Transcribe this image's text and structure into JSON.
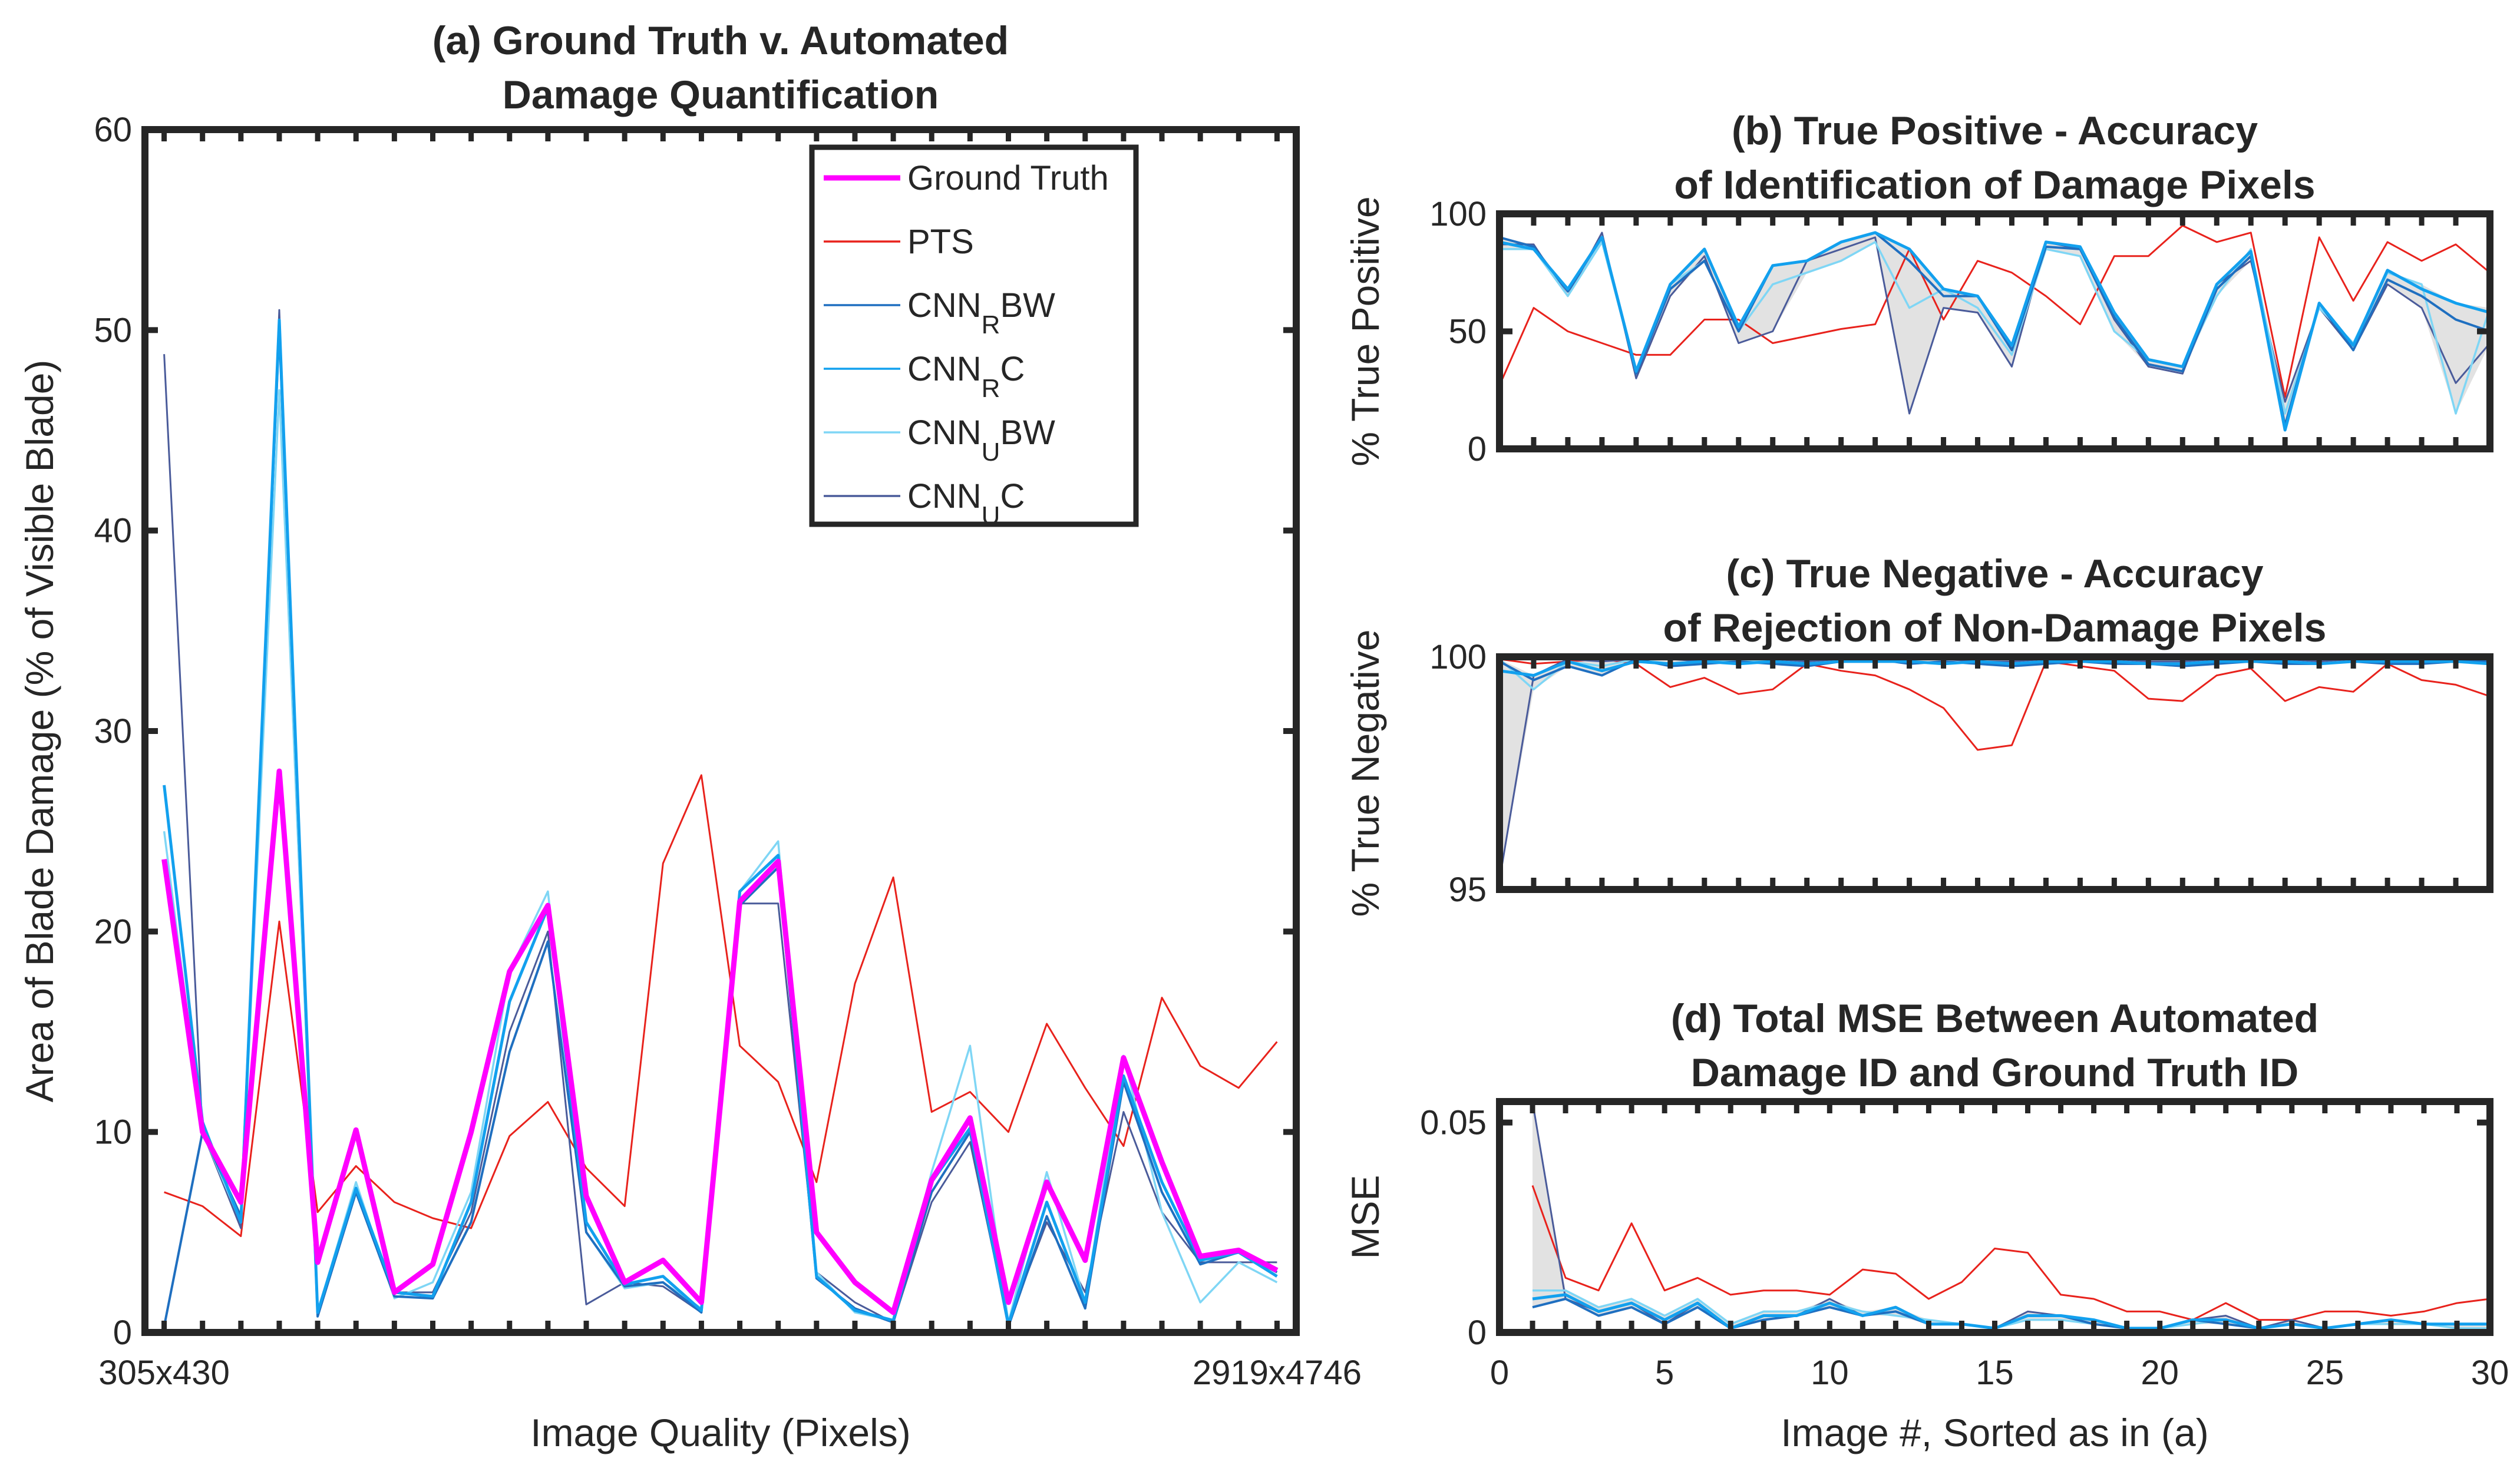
{
  "colors": {
    "ground_truth": "#ff00ff",
    "pts": "#e8221c",
    "cnn_r_bw": "#1f6fc0",
    "cnn_r_c": "#12a0ee",
    "cnn_u_bw": "#7fd6f5",
    "cnn_u_c": "#4a5b9a",
    "shade": "#d8d8d8",
    "axis": "#262626"
  },
  "chart_data": [
    {
      "id": "a",
      "type": "line",
      "title_lines": [
        "(a) Ground Truth v. Automated",
        "Damage Quantification"
      ],
      "xlabel": "Image Quality (Pixels)",
      "ylabel": "Area of Blade Damage (% of Visible Blade)",
      "xlim": [
        0.5,
        30.5
      ],
      "ylim": [
        0,
        60
      ],
      "yticks": [
        0,
        10,
        20,
        30,
        40,
        50,
        60
      ],
      "xticks": [
        1,
        30
      ],
      "xticklabels": [
        "305x430",
        "2919x4746"
      ],
      "legend": {
        "position": "top-right",
        "entries": [
          {
            "key": "gt",
            "base": "Ground Truth",
            "sub": "",
            "tail": ""
          },
          {
            "key": "pts",
            "base": "PTS",
            "sub": "",
            "tail": ""
          },
          {
            "key": "rbw",
            "base": "CNN",
            "sub": "R",
            "tail": "BW"
          },
          {
            "key": "rc",
            "base": "CNN",
            "sub": "R",
            "tail": "C"
          },
          {
            "key": "ubw",
            "base": "CNN",
            "sub": "U",
            "tail": "BW"
          },
          {
            "key": "uc",
            "base": "CNN",
            "sub": "U",
            "tail": "C"
          }
        ]
      },
      "series": [
        {
          "key": "pts",
          "name": "PTS",
          "values": [
            7,
            6.3,
            4.8,
            20.5,
            6,
            8.3,
            6.5,
            5.7,
            5.2,
            9.8,
            11.5,
            8.2,
            6.3,
            23.4,
            27.8,
            14.3,
            12.5,
            7.5,
            17.4,
            22.7,
            11,
            12,
            10,
            15.4,
            12.2,
            9.3,
            16.7,
            13.3,
            12.2,
            14.5
          ]
        },
        {
          "key": "uc",
          "name": "CNN_U C",
          "values": [
            48.8,
            10,
            5.2,
            51,
            1,
            7,
            2,
            2,
            6,
            15,
            20,
            1.4,
            2.5,
            2.3,
            1,
            21.4,
            21.4,
            3,
            1.5,
            0.5,
            6.5,
            9.5,
            0.5,
            5.5,
            2,
            11,
            6,
            3.5,
            3.5,
            3.5
          ]
        },
        {
          "key": "ubw",
          "name": "CNN_U BW",
          "values": [
            25,
            10,
            5.5,
            47,
            1,
            7.5,
            1.7,
            2.5,
            7,
            18,
            22,
            5,
            2.2,
            2.5,
            1.2,
            22,
            24.5,
            3,
            1,
            0.6,
            8,
            14.3,
            0.5,
            8,
            1.5,
            13.8,
            6,
            1.5,
            3.5,
            2.5
          ]
        },
        {
          "key": "rbw",
          "name": "CNN_R BW",
          "values": [
            0.3,
            10,
            5.8,
            50,
            0.8,
            7,
            1.8,
            1.7,
            5.5,
            14,
            19.5,
            5,
            2.3,
            2.5,
            1,
            21.3,
            23.2,
            2.7,
            1.2,
            0.5,
            7,
            10,
            0.3,
            5.8,
            1.2,
            12.5,
            7,
            3.4,
            4,
            3
          ]
        },
        {
          "key": "rc",
          "name": "CNN_R C",
          "values": [
            27.3,
            10.5,
            5.5,
            50.5,
            1,
            7.2,
            2,
            1.8,
            6.5,
            16.5,
            21.2,
            5.5,
            2.4,
            2.8,
            1.1,
            22,
            23.8,
            2.8,
            1.1,
            0.6,
            7.5,
            10.2,
            0.4,
            6.5,
            1.5,
            12.8,
            7.5,
            3.6,
            4,
            2.8
          ]
        },
        {
          "key": "gt",
          "name": "Ground Truth",
          "values": [
            23.6,
            10,
            6.5,
            28,
            3.5,
            10.1,
            2,
            3.4,
            10,
            18,
            21.3,
            6.8,
            2.5,
            3.6,
            1.5,
            21.5,
            23.5,
            5,
            2.5,
            1,
            7.6,
            10.7,
            1.5,
            7.5,
            3.6,
            13.7,
            8.5,
            3.8,
            4.1,
            3.1
          ]
        }
      ]
    },
    {
      "id": "b",
      "type": "line",
      "title_lines": [
        "(b) True Positive - Accuracy",
        "of Identification of Damage Pixels"
      ],
      "xlabel": "",
      "ylabel": "% True Positive",
      "xlim": [
        1,
        30
      ],
      "ylim": [
        0,
        100
      ],
      "yticks": [
        0,
        50,
        100
      ],
      "xticks": [
        1,
        5,
        10,
        15,
        20,
        25,
        30
      ],
      "series": [
        {
          "key": "pts",
          "name": "PTS",
          "values": [
            27,
            60,
            50,
            45,
            40,
            40,
            55,
            55,
            45,
            48,
            51,
            53,
            85,
            55,
            80,
            75,
            65,
            53,
            82,
            82,
            95,
            88,
            92,
            22,
            90,
            63,
            88,
            80,
            87,
            75
          ]
        },
        {
          "key": "uc",
          "name": "CNN_U C",
          "values": [
            87,
            87,
            65,
            92,
            30,
            65,
            82,
            45,
            50,
            80,
            85,
            90,
            15,
            60,
            58,
            35,
            88,
            85,
            55,
            35,
            32,
            70,
            80,
            20,
            60,
            42,
            70,
            60,
            28,
            45
          ]
        },
        {
          "key": "ubw",
          "name": "CNN_U BW",
          "values": [
            85,
            85,
            65,
            88,
            33,
            70,
            80,
            50,
            70,
            75,
            80,
            88,
            60,
            68,
            60,
            40,
            85,
            82,
            50,
            38,
            35,
            65,
            85,
            15,
            60,
            45,
            75,
            70,
            15,
            60
          ]
        },
        {
          "key": "rbw",
          "name": "CNN_R BW",
          "values": [
            90,
            86,
            67,
            90,
            32,
            68,
            80,
            50,
            78,
            80,
            88,
            92,
            80,
            65,
            65,
            42,
            86,
            85,
            56,
            36,
            33,
            68,
            82,
            10,
            62,
            42,
            72,
            65,
            55,
            50
          ]
        },
        {
          "key": "rc",
          "name": "CNN_R C",
          "values": [
            88,
            85,
            68,
            90,
            33,
            70,
            85,
            52,
            78,
            80,
            88,
            92,
            85,
            68,
            65,
            44,
            88,
            86,
            58,
            38,
            35,
            70,
            84,
            8,
            62,
            44,
            76,
            68,
            62,
            58
          ]
        }
      ]
    },
    {
      "id": "c",
      "type": "line",
      "title_lines": [
        "(c) True Negative - Accuracy",
        "of Rejection of Non-Damage Pixels"
      ],
      "xlabel": "",
      "ylabel": "% True Negative",
      "xlim": [
        1,
        30
      ],
      "ylim": [
        95,
        100
      ],
      "yticks": [
        95,
        100
      ],
      "xticks": [
        1,
        5,
        10,
        15,
        20,
        25,
        30
      ],
      "series": [
        {
          "key": "pts",
          "name": "PTS",
          "values": [
            99.95,
            99.85,
            99.9,
            99.95,
            99.85,
            99.35,
            99.55,
            99.2,
            99.3,
            99.85,
            99.7,
            99.6,
            99.3,
            98.9,
            98.0,
            98.1,
            99.9,
            99.8,
            99.7,
            99.1,
            99.05,
            99.6,
            99.75,
            99.05,
            99.35,
            99.25,
            99.85,
            99.5,
            99.4,
            99.15
          ]
        },
        {
          "key": "uc",
          "name": "CNN_U C",
          "values": [
            95.2,
            99.6,
            99.95,
            99.9,
            99.95,
            99.95,
            99.9,
            99.95,
            99.95,
            99.9,
            99.95,
            99.95,
            99.95,
            99.95,
            99.9,
            99.9,
            99.95,
            99.95,
            99.95,
            99.9,
            99.9,
            99.95,
            99.95,
            99.95,
            99.9,
            99.95,
            99.95,
            99.95,
            99.95,
            99.95
          ]
        },
        {
          "key": "ubw",
          "name": "CNN_U BW",
          "values": [
            99.95,
            99.3,
            99.9,
            99.8,
            99.95,
            99.85,
            99.9,
            99.9,
            99.9,
            99.85,
            99.9,
            99.95,
            99.85,
            99.9,
            99.85,
            99.8,
            99.9,
            99.9,
            99.9,
            99.85,
            99.8,
            99.85,
            99.95,
            99.9,
            99.85,
            99.9,
            99.9,
            99.85,
            99.9,
            99.9
          ]
        },
        {
          "key": "rbw",
          "name": "CNN_R BW",
          "values": [
            99.9,
            99.5,
            99.8,
            99.6,
            99.95,
            99.8,
            99.85,
            99.9,
            99.85,
            99.8,
            99.9,
            99.95,
            99.85,
            99.9,
            99.85,
            99.8,
            99.85,
            99.9,
            99.85,
            99.85,
            99.8,
            99.85,
            99.9,
            99.85,
            99.85,
            99.9,
            99.85,
            99.85,
            99.9,
            99.9
          ]
        },
        {
          "key": "rc",
          "name": "CNN_R C",
          "values": [
            99.7,
            99.6,
            99.9,
            99.7,
            99.9,
            99.85,
            99.9,
            99.85,
            99.9,
            99.85,
            99.9,
            99.9,
            99.9,
            99.85,
            99.9,
            99.85,
            99.9,
            99.9,
            99.9,
            99.85,
            99.85,
            99.9,
            99.9,
            99.9,
            99.85,
            99.9,
            99.9,
            99.9,
            99.9,
            99.85
          ]
        }
      ]
    },
    {
      "id": "d",
      "type": "line",
      "title_lines": [
        "(d) Total MSE Between Automated",
        "Damage ID and Ground Truth ID"
      ],
      "xlabel": "Image #, Sorted as in (a)",
      "ylabel": "MSE",
      "xlim": [
        0,
        30
      ],
      "ylim": [
        0,
        0.055
      ],
      "yticks": [
        0,
        0.05
      ],
      "yticklabels": [
        "0",
        "0.05"
      ],
      "xticks": [
        0,
        5,
        10,
        15,
        20,
        25,
        30
      ],
      "series": [
        {
          "key": "pts",
          "name": "PTS",
          "values": [
            0.035,
            0.013,
            0.01,
            0.026,
            0.01,
            0.013,
            0.009,
            0.01,
            0.01,
            0.009,
            0.015,
            0.014,
            0.008,
            0.012,
            0.02,
            0.019,
            0.009,
            0.008,
            0.005,
            0.005,
            0.003,
            0.007,
            0.003,
            0.003,
            0.005,
            0.005,
            0.004,
            0.005,
            0.007,
            0.008
          ]
        },
        {
          "key": "uc",
          "name": "CNN_U C",
          "values": [
            0.055,
            0.008,
            0.005,
            0.007,
            0.002,
            0.007,
            0.001,
            0.003,
            0.004,
            0.008,
            0.004,
            0.006,
            0.002,
            0.002,
            0.001,
            0.005,
            0.004,
            0.003,
            0.001,
            0.001,
            0.003,
            0.004,
            0.001,
            0.003,
            0.001,
            0.002,
            0.003,
            0.002,
            0.002,
            0.002
          ]
        },
        {
          "key": "ubw",
          "name": "CNN_U BW",
          "values": [
            0.01,
            0.01,
            0.006,
            0.008,
            0.004,
            0.008,
            0.002,
            0.005,
            0.005,
            0.007,
            0.005,
            0.004,
            0.003,
            0.002,
            0.001,
            0.003,
            0.003,
            0.002,
            0.001,
            0.001,
            0.002,
            0.003,
            0.001,
            0.002,
            0.001,
            0.002,
            0.002,
            0.002,
            0.001,
            0.001
          ]
        },
        {
          "key": "rbw",
          "name": "CNN_R BW",
          "values": [
            0.006,
            0.008,
            0.004,
            0.006,
            0.002,
            0.006,
            0.001,
            0.003,
            0.004,
            0.006,
            0.004,
            0.005,
            0.002,
            0.002,
            0.001,
            0.004,
            0.004,
            0.002,
            0.001,
            0.001,
            0.003,
            0.002,
            0.001,
            0.002,
            0.001,
            0.002,
            0.003,
            0.002,
            0.002,
            0.002
          ]
        },
        {
          "key": "rc",
          "name": "CNN_R C",
          "values": [
            0.008,
            0.009,
            0.005,
            0.007,
            0.003,
            0.007,
            0.001,
            0.004,
            0.004,
            0.007,
            0.004,
            0.006,
            0.002,
            0.002,
            0.001,
            0.004,
            0.004,
            0.003,
            0.001,
            0.001,
            0.003,
            0.003,
            0.001,
            0.002,
            0.001,
            0.002,
            0.003,
            0.002,
            0.002,
            0.002
          ]
        }
      ]
    }
  ]
}
